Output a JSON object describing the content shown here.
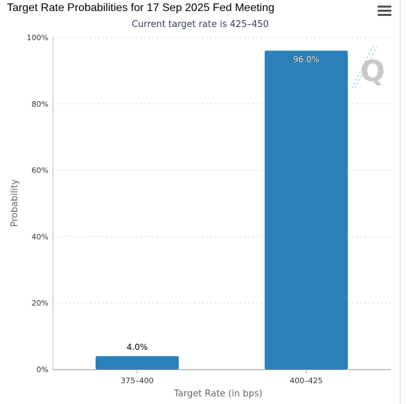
{
  "header": {
    "title": "Target Rate Probabilities for 17 Sep 2025 Fed Meeting",
    "subtitle": "Current target rate is 425–450",
    "menu_icon": "hamburger-menu-icon"
  },
  "watermark": {
    "icon": "q-logo-icon",
    "text": "Q"
  },
  "colors": {
    "bar": "#2a81b9",
    "grid": "#d0d0d0",
    "axis": "#999999"
  },
  "chart_data": {
    "type": "bar",
    "title": "Target Rate Probabilities for 17 Sep 2025 Fed Meeting",
    "subtitle": "Current target rate is 425–450",
    "xlabel": "Target Rate (in bps)",
    "ylabel": "Probability",
    "categories": [
      "375–400",
      "400–425"
    ],
    "values": [
      4.0,
      96.0
    ],
    "data_labels": [
      "4.0%",
      "96.0%"
    ],
    "ylim": [
      0,
      100
    ],
    "yticks": [
      0,
      20,
      40,
      60,
      80,
      100
    ],
    "ytick_labels": [
      "0%",
      "20%",
      "40%",
      "60%",
      "80%",
      "100%"
    ],
    "grid": true,
    "legend": "none"
  }
}
